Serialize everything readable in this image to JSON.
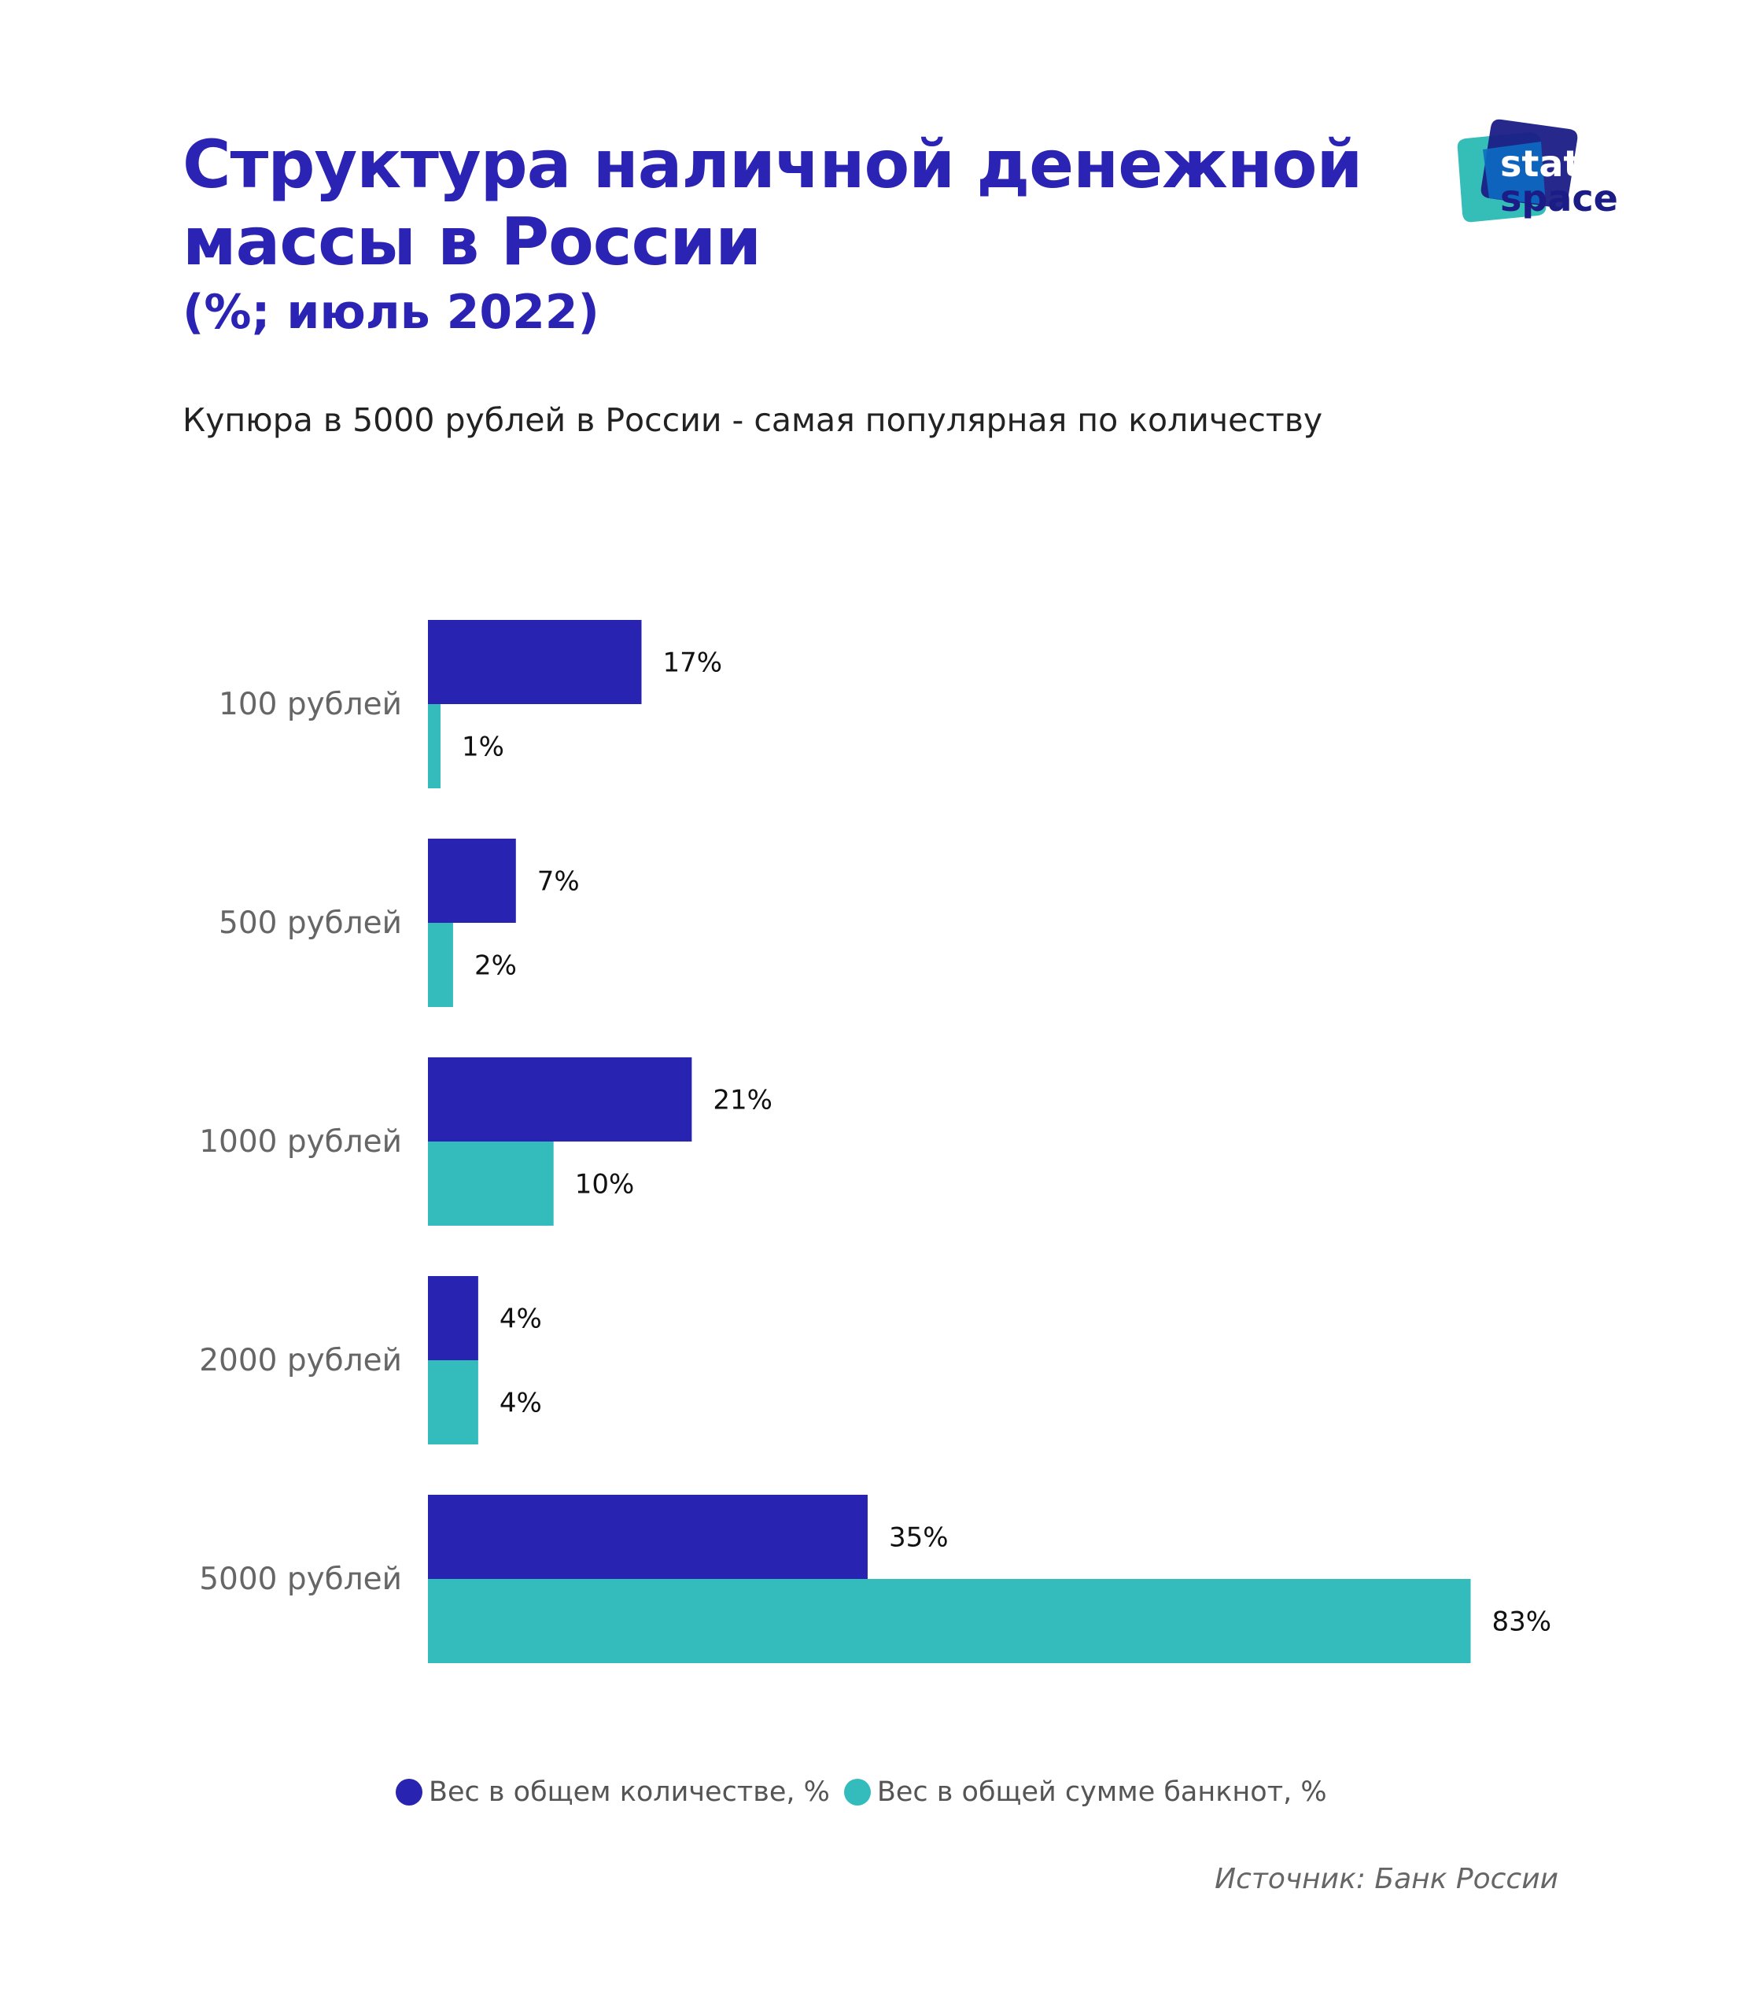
{
  "header": {
    "title_line1": "Структура наличной денежной",
    "title_line2": "массы в России",
    "period": "(%; июль 2022)",
    "subtitle": "Купюра в 5000 рублей в России - самая популярная по количеству"
  },
  "logo": {
    "text_top": "stat",
    "text_bottom": "space"
  },
  "source": "Источник: Банк России",
  "colors": {
    "count": "#2823B0",
    "sum": "#34BBBB",
    "title": "#2B23B3"
  },
  "chart_data": {
    "type": "bar",
    "orientation": "horizontal",
    "categories": [
      "100 рублей",
      "500 рублей",
      "1000 рублей",
      "2000 рублей",
      "5000 рублей"
    ],
    "series": [
      {
        "name": "Вес в общем количестве, %",
        "values": [
          17,
          7,
          21,
          4,
          35
        ],
        "labels": [
          "17%",
          "7%",
          "21%",
          "4%",
          "35%"
        ]
      },
      {
        "name": "Вес в общей сумме банкнот, %",
        "values": [
          1,
          2,
          10,
          4,
          83
        ],
        "labels": [
          "1%",
          "2%",
          "10%",
          "4%",
          "83%"
        ]
      }
    ],
    "xlim": [
      0,
      100
    ],
    "grid": false,
    "legend": "bottom"
  }
}
